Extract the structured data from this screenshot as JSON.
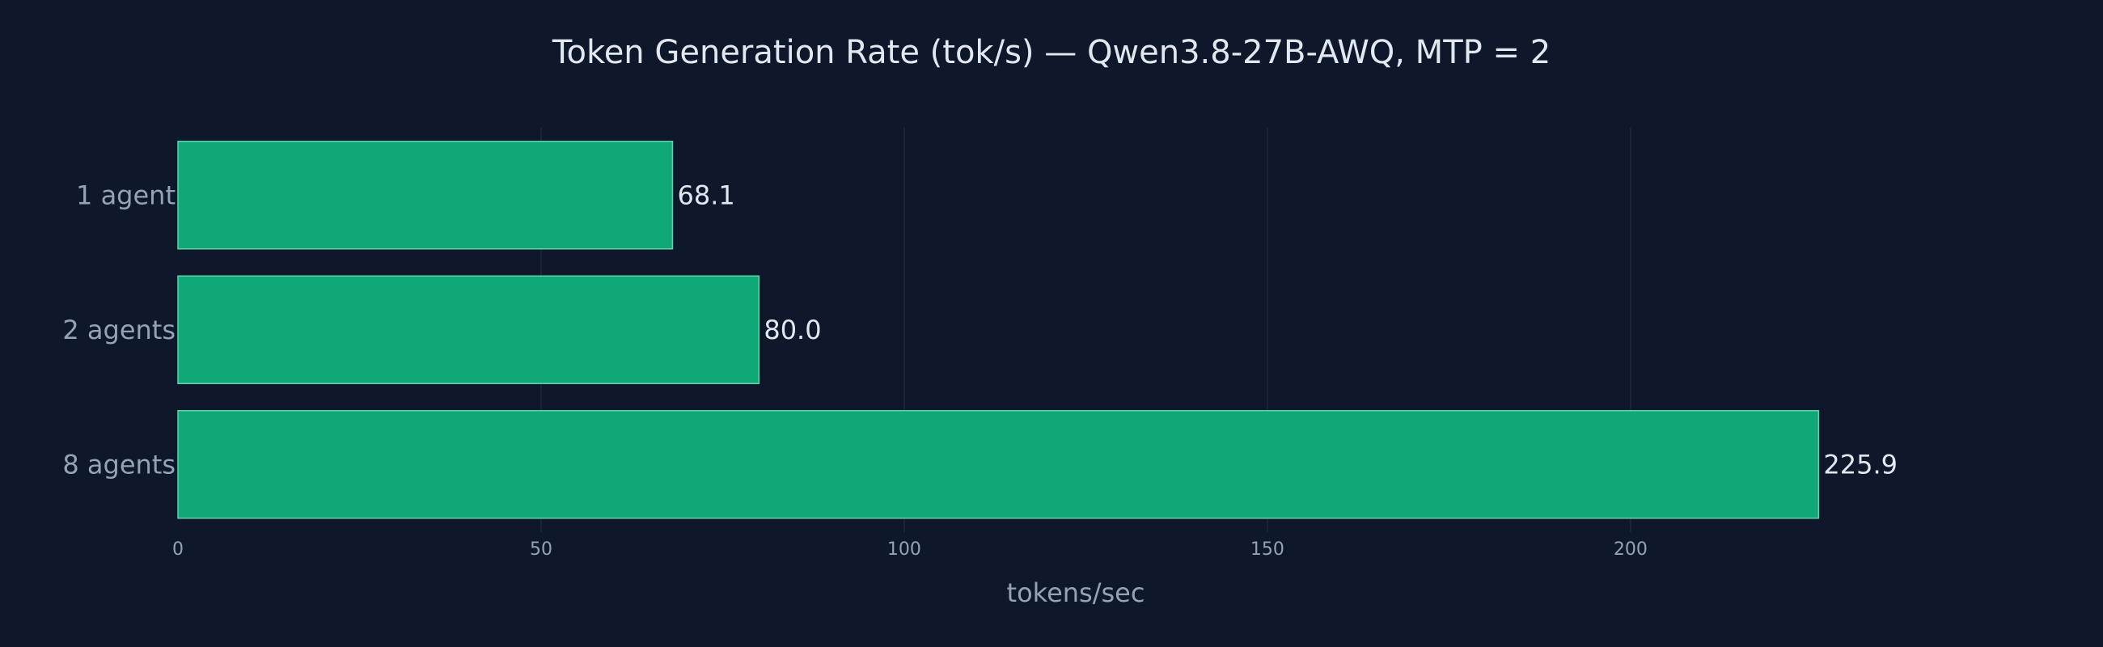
{
  "chart_data": {
    "type": "bar",
    "orientation": "horizontal",
    "title": "Token Generation Rate (tok/s) — Qwen3.8-27B-AWQ, MTP = 2",
    "xlabel": "tokens/sec",
    "ylabel": "",
    "categories": [
      "1 agent",
      "2 agents",
      "8 agents"
    ],
    "values": [
      68.1,
      80.0,
      225.9
    ],
    "value_labels": [
      "68.1",
      "80.0",
      "225.9"
    ],
    "xlim": [
      0,
      240
    ],
    "xticks": [
      0,
      50,
      100,
      150,
      200
    ],
    "grid": "vertical",
    "legend": "none",
    "colors": {
      "background": "#0f172a",
      "bar_fill": "#10a877",
      "bar_stroke": "#5fd3a9",
      "grid": "#1e293b",
      "title": "#e2e8f0",
      "labels": "#94a3b8",
      "values": "#e2e8f0"
    }
  }
}
